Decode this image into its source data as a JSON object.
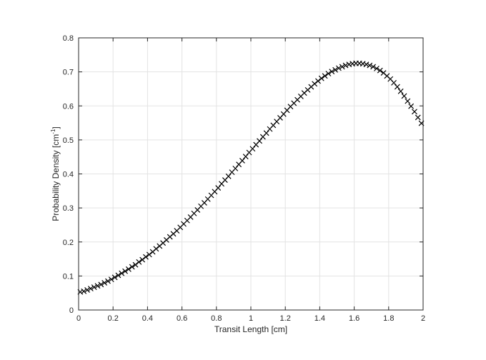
{
  "chart_data": {
    "type": "scatter",
    "marker": "x",
    "marker_color": "#000000",
    "grid": true,
    "xlabel": "Transit Length [cm]",
    "ylabel_main": "Probability Density [cm",
    "ylabel_sup": "-1",
    "ylabel_end": "]",
    "xlim": [
      0,
      2
    ],
    "ylim": [
      0,
      0.8
    ],
    "xticks": [
      0,
      0.2,
      0.4,
      0.6,
      0.8,
      1,
      1.2,
      1.4,
      1.6,
      1.8,
      2
    ],
    "xtick_labels": [
      "0",
      "0.2",
      "0.4",
      "0.6",
      "0.8",
      "1",
      "1.2",
      "1.4",
      "1.6",
      "1.8",
      "2"
    ],
    "yticks": [
      0,
      0.1,
      0.2,
      0.3,
      0.4,
      0.5,
      0.6,
      0.7,
      0.8
    ],
    "ytick_labels": [
      "0",
      "0.1",
      "0.2",
      "0.3",
      "0.4",
      "0.5",
      "0.6",
      "0.7",
      "0.8"
    ],
    "series": [
      {
        "x": [
          0.01,
          0.03,
          0.05,
          0.07,
          0.09,
          0.11,
          0.13,
          0.15,
          0.17,
          0.19,
          0.21,
          0.23,
          0.25,
          0.27,
          0.29,
          0.31,
          0.33,
          0.35,
          0.37,
          0.39,
          0.41,
          0.43,
          0.45,
          0.47,
          0.49,
          0.51,
          0.53,
          0.55,
          0.57,
          0.59,
          0.61,
          0.63,
          0.65,
          0.67,
          0.69,
          0.71,
          0.73,
          0.75,
          0.77,
          0.79,
          0.81,
          0.83,
          0.85,
          0.87,
          0.89,
          0.91,
          0.93,
          0.95,
          0.97,
          0.99,
          1.01,
          1.03,
          1.05,
          1.07,
          1.09,
          1.11,
          1.13,
          1.15,
          1.17,
          1.19,
          1.21,
          1.23,
          1.25,
          1.27,
          1.29,
          1.31,
          1.33,
          1.35,
          1.37,
          1.39,
          1.41,
          1.43,
          1.45,
          1.47,
          1.49,
          1.51,
          1.53,
          1.55,
          1.57,
          1.59,
          1.61,
          1.63,
          1.65,
          1.67,
          1.69,
          1.71,
          1.73,
          1.75,
          1.77,
          1.79,
          1.81,
          1.83,
          1.85,
          1.87,
          1.89,
          1.91,
          1.93,
          1.95,
          1.97,
          1.99
        ],
        "y": [
          0.053,
          0.055,
          0.059,
          0.063,
          0.067,
          0.071,
          0.075,
          0.08,
          0.085,
          0.09,
          0.096,
          0.102,
          0.108,
          0.114,
          0.12,
          0.127,
          0.133,
          0.141,
          0.148,
          0.156,
          0.163,
          0.171,
          0.18,
          0.188,
          0.197,
          0.206,
          0.215,
          0.224,
          0.233,
          0.243,
          0.253,
          0.263,
          0.273,
          0.284,
          0.294,
          0.305,
          0.315,
          0.326,
          0.337,
          0.348,
          0.359,
          0.371,
          0.382,
          0.393,
          0.405,
          0.416,
          0.428,
          0.439,
          0.451,
          0.463,
          0.474,
          0.486,
          0.497,
          0.509,
          0.52,
          0.532,
          0.543,
          0.554,
          0.565,
          0.576,
          0.587,
          0.598,
          0.608,
          0.618,
          0.628,
          0.638,
          0.647,
          0.656,
          0.665,
          0.673,
          0.681,
          0.688,
          0.695,
          0.701,
          0.706,
          0.711,
          0.715,
          0.719,
          0.722,
          0.724,
          0.725,
          0.725,
          0.724,
          0.722,
          0.719,
          0.715,
          0.71,
          0.704,
          0.697,
          0.688,
          0.679,
          0.668,
          0.656,
          0.643,
          0.629,
          0.614,
          0.599,
          0.583,
          0.566,
          0.549
        ]
      }
    ]
  }
}
